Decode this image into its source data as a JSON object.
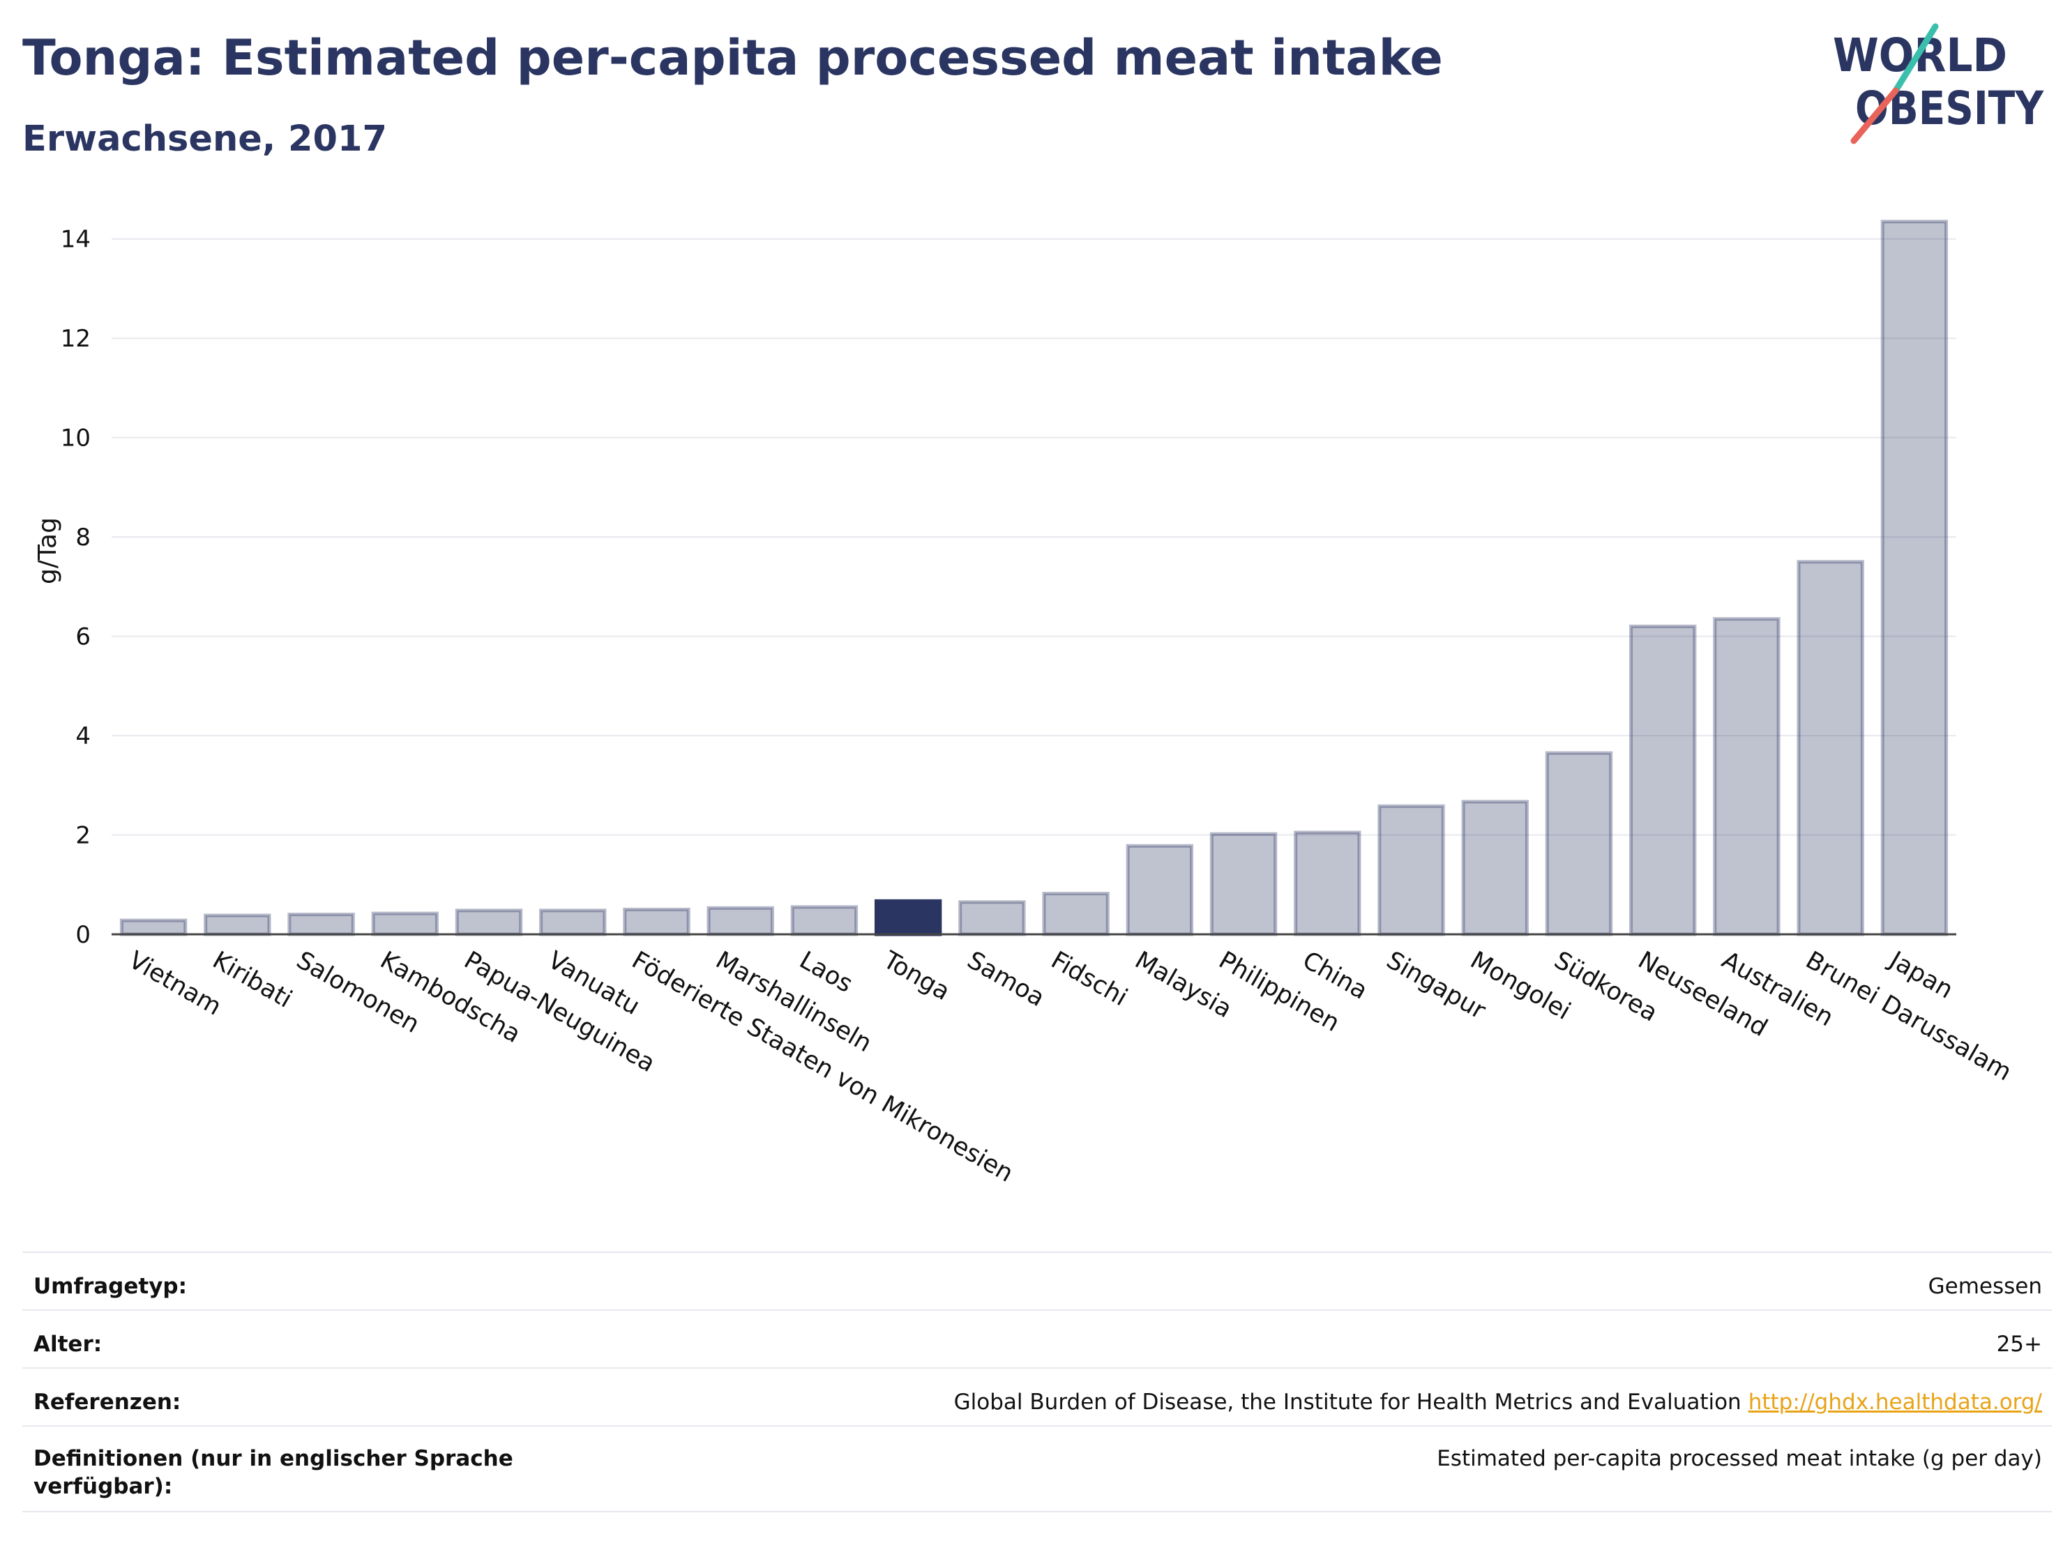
{
  "title": "Tonga: Estimated per-capita processed meat intake",
  "subtitle": "Erwachsene, 2017",
  "logo": {
    "line1": "WORLD",
    "line2": "OBESITY",
    "accent_teal": "#3bbfad",
    "accent_red": "#e8645a"
  },
  "colors": {
    "bar": "#2b3561",
    "bar_muted_fill": "rgba(43,53,97,0.3)",
    "bar_muted_stroke": "rgba(43,53,97,0.35)"
  },
  "chart_data": {
    "type": "bar",
    "ylabel": "g/Tag",
    "xlabel": "",
    "ylim": [
      0,
      14.6
    ],
    "yticks": [
      0,
      2,
      4,
      6,
      8,
      10,
      12,
      14
    ],
    "grid": true,
    "highlight": "Tonga",
    "categories": [
      "Vietnam",
      "Kiribati",
      "Salomonen",
      "Kambodscha",
      "Papua-Neuguinea",
      "Vanuatu",
      "Föderierte Staaten von Mikronesien",
      "Marshallinseln",
      "Laos",
      "Tonga",
      "Samoa",
      "Fidschi",
      "Malaysia",
      "Philippinen",
      "China",
      "Singapur",
      "Mongolei",
      "Südkorea",
      "Neuseeland",
      "Australien",
      "Brunei Darussalam",
      "Japan"
    ],
    "values": [
      0.28,
      0.38,
      0.4,
      0.42,
      0.48,
      0.48,
      0.5,
      0.53,
      0.55,
      0.67,
      0.65,
      0.82,
      1.78,
      2.02,
      2.05,
      2.58,
      2.67,
      3.65,
      6.2,
      6.35,
      7.5,
      14.35
    ]
  },
  "info": {
    "rows": [
      {
        "label": "Umfragetyp:",
        "value": "Gemessen"
      },
      {
        "label": "Alter:",
        "value": "25+"
      },
      {
        "label": "Referenzen:",
        "value": "Global Burden of Disease, the Institute for Health Metrics and Evaluation",
        "link": "http://ghdx.healthdata.org/"
      },
      {
        "label": "Definitionen (nur in englischer Sprache verfügbar):",
        "value": "Estimated per-capita processed meat intake (g per day)"
      }
    ]
  }
}
